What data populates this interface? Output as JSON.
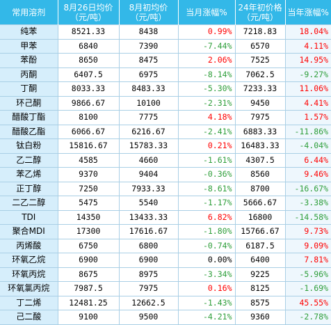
{
  "headers": [
    "常用溶剂",
    "8月26日均价\n（元/吨）",
    "8月初均价\n（元/吨）",
    "当月涨幅%",
    "24年初价格\n（元/吨）",
    "当年涨幅%"
  ],
  "rows": [
    {
      "name": "纯苯",
      "aug26": "8521.33",
      "aug_start": "8438",
      "month_chg": "0.99%",
      "month_dir": "up",
      "y24_start": "7218.83",
      "year_chg": "18.04%",
      "year_dir": "up"
    },
    {
      "name": "甲苯",
      "aug26": "6840",
      "aug_start": "7390",
      "month_chg": "-7.44%",
      "month_dir": "down",
      "y24_start": "6570",
      "year_chg": "4.11%",
      "year_dir": "up"
    },
    {
      "name": "苯酚",
      "aug26": "8650",
      "aug_start": "8475",
      "month_chg": "2.06%",
      "month_dir": "up",
      "y24_start": "7525",
      "year_chg": "14.95%",
      "year_dir": "up"
    },
    {
      "name": "丙酮",
      "aug26": "6407.5",
      "aug_start": "6975",
      "month_chg": "-8.14%",
      "month_dir": "down",
      "y24_start": "7062.5",
      "year_chg": "-9.27%",
      "year_dir": "down"
    },
    {
      "name": "丁酮",
      "aug26": "8033.33",
      "aug_start": "8483.33",
      "month_chg": "-5.30%",
      "month_dir": "down",
      "y24_start": "7233.33",
      "year_chg": "11.06%",
      "year_dir": "up"
    },
    {
      "name": "环己酮",
      "aug26": "9866.67",
      "aug_start": "10100",
      "month_chg": "-2.31%",
      "month_dir": "down",
      "y24_start": "9450",
      "year_chg": "4.41%",
      "year_dir": "up"
    },
    {
      "name": "醋酸丁酯",
      "aug26": "8100",
      "aug_start": "7775",
      "month_chg": "4.18%",
      "month_dir": "up",
      "y24_start": "7975",
      "year_chg": "1.57%",
      "year_dir": "up"
    },
    {
      "name": "醋酸乙酯",
      "aug26": "6066.67",
      "aug_start": "6216.67",
      "month_chg": "-2.41%",
      "month_dir": "down",
      "y24_start": "6883.33",
      "year_chg": "-11.86%",
      "year_dir": "down"
    },
    {
      "name": "钛白粉",
      "aug26": "15816.67",
      "aug_start": "15783.33",
      "month_chg": "0.21%",
      "month_dir": "up",
      "y24_start": "16483.33",
      "year_chg": "-4.04%",
      "year_dir": "down"
    },
    {
      "name": "乙二醇",
      "aug26": "4585",
      "aug_start": "4660",
      "month_chg": "-1.61%",
      "month_dir": "down",
      "y24_start": "4307.5",
      "year_chg": "6.44%",
      "year_dir": "up"
    },
    {
      "name": "苯乙烯",
      "aug26": "9370",
      "aug_start": "9404",
      "month_chg": "-0.36%",
      "month_dir": "down",
      "y24_start": "8560",
      "year_chg": "9.46%",
      "year_dir": "up"
    },
    {
      "name": "正丁醇",
      "aug26": "7250",
      "aug_start": "7933.33",
      "month_chg": "-8.61%",
      "month_dir": "down",
      "y24_start": "8700",
      "year_chg": "-16.67%",
      "year_dir": "down"
    },
    {
      "name": "二乙二醇",
      "aug26": "5475",
      "aug_start": "5540",
      "month_chg": "-1.17%",
      "month_dir": "down",
      "y24_start": "5666.67",
      "year_chg": "-3.38%",
      "year_dir": "down"
    },
    {
      "name": "TDI",
      "aug26": "14350",
      "aug_start": "13433.33",
      "month_chg": "6.82%",
      "month_dir": "up",
      "y24_start": "16800",
      "year_chg": "-14.58%",
      "year_dir": "down"
    },
    {
      "name": "聚合MDI",
      "aug26": "17300",
      "aug_start": "17616.67",
      "month_chg": "-1.80%",
      "month_dir": "down",
      "y24_start": "15766.67",
      "year_chg": "9.73%",
      "year_dir": "up"
    },
    {
      "name": "丙烯酸",
      "aug26": "6750",
      "aug_start": "6800",
      "month_chg": "-0.74%",
      "month_dir": "down",
      "y24_start": "6187.5",
      "year_chg": "9.09%",
      "year_dir": "up"
    },
    {
      "name": "环氧乙烷",
      "aug26": "6900",
      "aug_start": "6900",
      "month_chg": "0.00%",
      "month_dir": "flat",
      "y24_start": "6400",
      "year_chg": "7.81%",
      "year_dir": "up"
    },
    {
      "name": "环氧丙烷",
      "aug26": "8675",
      "aug_start": "8975",
      "month_chg": "-3.34%",
      "month_dir": "down",
      "y24_start": "9225",
      "year_chg": "-5.96%",
      "year_dir": "down"
    },
    {
      "name": "环氧氯丙烷",
      "aug26": "7987.5",
      "aug_start": "7975",
      "month_chg": "0.16%",
      "month_dir": "up",
      "y24_start": "8125",
      "year_chg": "-1.69%",
      "year_dir": "down"
    },
    {
      "name": "丁二烯",
      "aug26": "12481.25",
      "aug_start": "12662.5",
      "month_chg": "-1.43%",
      "month_dir": "down",
      "y24_start": "8575",
      "year_chg": "45.55%",
      "year_dir": "up"
    },
    {
      "name": "己二酸",
      "aug26": "9100",
      "aug_start": "9500",
      "month_chg": "-4.21%",
      "month_dir": "down",
      "y24_start": "9360",
      "year_chg": "-2.78%",
      "year_dir": "down"
    }
  ],
  "colors": {
    "header_bg": "#33b8e8",
    "name_bg": "#d6eefb",
    "up": "#ff0000",
    "down": "#2e9e3a"
  }
}
